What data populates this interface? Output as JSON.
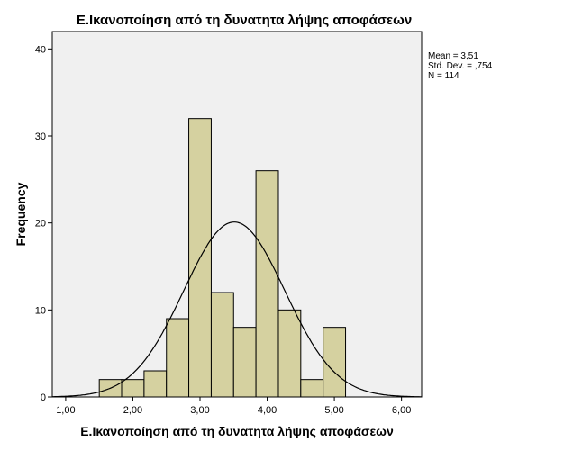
{
  "chart_data": {
    "type": "histogram",
    "title": "Ε.Ικανοποίηση από τη δυνατητα λήψης αποφάσεων",
    "xlabel": "Ε.Ικανοποίηση από τη δυνατητα λήψης αποφάσεων",
    "ylabel": "Frequency",
    "xlim": [
      0.8,
      6.3
    ],
    "ylim": [
      0,
      42
    ],
    "x_ticks": [
      {
        "value": 1,
        "label": "1,00"
      },
      {
        "value": 2,
        "label": "2,00"
      },
      {
        "value": 3,
        "label": "3,00"
      },
      {
        "value": 4,
        "label": "4,00"
      },
      {
        "value": 5,
        "label": "5,00"
      },
      {
        "value": 6,
        "label": "6,00"
      }
    ],
    "y_ticks": [
      {
        "value": 0,
        "label": "0"
      },
      {
        "value": 10,
        "label": "10"
      },
      {
        "value": 20,
        "label": "20"
      },
      {
        "value": 30,
        "label": "30"
      },
      {
        "value": 40,
        "label": "40"
      }
    ],
    "bins": [
      {
        "start": 1.5,
        "end": 1.833,
        "count": 2
      },
      {
        "start": 1.833,
        "end": 2.167,
        "count": 2
      },
      {
        "start": 2.167,
        "end": 2.5,
        "count": 3
      },
      {
        "start": 2.5,
        "end": 2.833,
        "count": 9
      },
      {
        "start": 2.833,
        "end": 3.167,
        "count": 32
      },
      {
        "start": 3.167,
        "end": 3.5,
        "count": 12
      },
      {
        "start": 3.5,
        "end": 3.833,
        "count": 8
      },
      {
        "start": 3.833,
        "end": 4.167,
        "count": 26
      },
      {
        "start": 4.167,
        "end": 4.5,
        "count": 10
      },
      {
        "start": 4.5,
        "end": 4.833,
        "count": 2
      },
      {
        "start": 4.833,
        "end": 5.167,
        "count": 8
      }
    ],
    "normal_curve": {
      "mean": 3.51,
      "std": 0.754,
      "n": 114,
      "bin_width": 0.3333
    },
    "stats": [
      "Mean = 3,51",
      "Std. Dev. = ,754",
      "N = 114"
    ],
    "grid": false,
    "legend": "none",
    "colors": {
      "bar_fill": "#d5d1a0",
      "bar_stroke": "#000000",
      "plot_bg": "#f0f0f0",
      "curve": "#000000"
    }
  }
}
